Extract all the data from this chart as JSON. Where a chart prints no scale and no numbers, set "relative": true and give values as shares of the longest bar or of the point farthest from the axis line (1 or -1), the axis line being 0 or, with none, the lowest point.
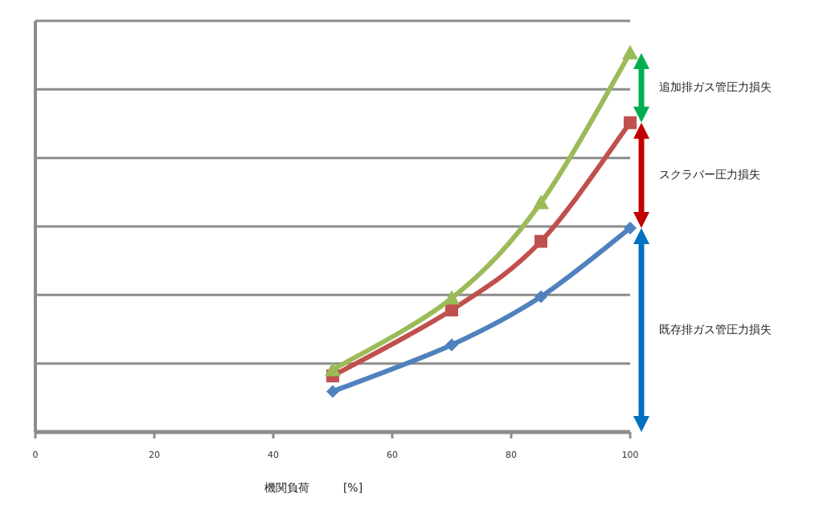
{
  "chart_data": {
    "type": "line",
    "relative": true,
    "xlabel": "機関負荷　　　[%]",
    "xlim": [
      0,
      100
    ],
    "xticks": [
      0,
      20,
      40,
      60,
      80,
      100
    ],
    "grid": "y",
    "series": [
      {
        "color": "#4f81bd",
        "marker": "diamond",
        "x": [
          50,
          70,
          85,
          100
        ],
        "values": [
          0.107,
          0.23,
          0.357,
          0.538
        ]
      },
      {
        "color": "#c0504d",
        "marker": "square",
        "x": [
          50,
          70,
          85,
          100
        ],
        "values": [
          0.148,
          0.322,
          0.503,
          0.816
        ]
      },
      {
        "color": "#9bbb59",
        "marker": "triangle",
        "x": [
          50,
          70,
          85,
          100
        ],
        "values": [
          0.164,
          0.353,
          0.605,
          1
        ]
      }
    ],
    "annotations": [
      "追加排ガス管圧力損失",
      "スクラバー圧力損失",
      "既存排ガス管圧力損失"
    ]
  }
}
